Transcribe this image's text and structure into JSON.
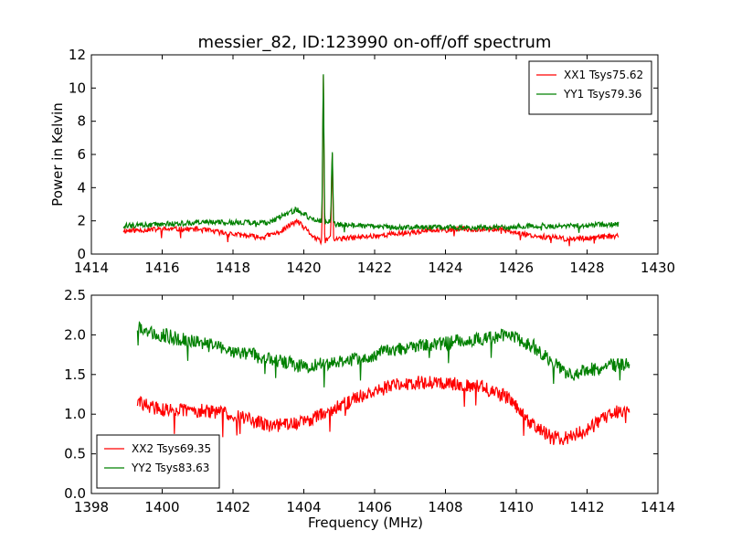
{
  "figure": {
    "title": "messier_82, ID:123990 on-off/off spectrum"
  },
  "chart_data": [
    {
      "type": "line",
      "title": "messier_82, ID:123990 on-off/off spectrum",
      "xlabel": "",
      "ylabel": "Power in Kelvin",
      "xlim": [
        1414,
        1430
      ],
      "ylim": [
        0,
        12
      ],
      "xticks": [
        "1414",
        "1416",
        "1418",
        "1420",
        "1422",
        "1424",
        "1426",
        "1428",
        "1430"
      ],
      "yticks": [
        "0",
        "2",
        "4",
        "6",
        "8",
        "10",
        "12"
      ],
      "grid": false,
      "legend_position": "top-right",
      "series": [
        {
          "name": "XX1 Tsys75.62",
          "color": "#ff0000",
          "x": [
            1414.9,
            1416,
            1417,
            1418,
            1418.8,
            1419.3,
            1419.8,
            1420.3,
            1420.5,
            1420.55,
            1420.6,
            1420.75,
            1420.8,
            1420.9,
            1421.5,
            1422.5,
            1423.5,
            1424.5,
            1425.5,
            1426.5,
            1427.5,
            1428.9
          ],
          "y": [
            1.4,
            1.5,
            1.5,
            1.2,
            1.0,
            1.3,
            2.0,
            1.0,
            0.7,
            11.3,
            0.8,
            1.0,
            6.6,
            0.9,
            1.0,
            1.2,
            1.4,
            1.5,
            1.5,
            1.1,
            0.9,
            1.1
          ]
        },
        {
          "name": "YY1 Tsys79.36",
          "color": "#008000",
          "x": [
            1414.9,
            1416,
            1417,
            1418,
            1419,
            1419.8,
            1420.3,
            1420.5,
            1420.55,
            1420.6,
            1420.75,
            1420.8,
            1420.9,
            1421.5,
            1422.5,
            1423.5,
            1424.5,
            1425.5,
            1426.5,
            1427.5,
            1428.9
          ],
          "y": [
            1.7,
            1.8,
            1.9,
            1.9,
            1.9,
            2.7,
            2.0,
            2.0,
            11.3,
            1.9,
            2.0,
            6.6,
            1.8,
            1.7,
            1.6,
            1.6,
            1.6,
            1.6,
            1.7,
            1.7,
            1.8
          ]
        }
      ]
    },
    {
      "type": "line",
      "title": "",
      "xlabel": "Frequency (MHz)",
      "ylabel": "",
      "xlim": [
        1398,
        1414
      ],
      "ylim": [
        0,
        2.5
      ],
      "xticks": [
        "1398",
        "1400",
        "1402",
        "1404",
        "1406",
        "1408",
        "1410",
        "1412",
        "1414"
      ],
      "yticks": [
        "0.0",
        "0.5",
        "1.0",
        "1.5",
        "2.0",
        "2.5"
      ],
      "grid": false,
      "legend_position": "bottom-left",
      "series": [
        {
          "name": "XX2 Tsys69.35",
          "color": "#ff0000",
          "x": [
            1399.3,
            1400,
            1401,
            1402,
            1403,
            1404,
            1405,
            1406,
            1407,
            1408,
            1409,
            1409.8,
            1410.5,
            1411,
            1411.5,
            1412,
            1412.5,
            1413.2
          ],
          "y": [
            1.15,
            1.05,
            1.05,
            1.0,
            0.85,
            0.9,
            1.1,
            1.3,
            1.4,
            1.4,
            1.35,
            1.2,
            0.85,
            0.7,
            0.7,
            0.8,
            0.95,
            1.1
          ]
        },
        {
          "name": "YY2 Tsys83.63",
          "color": "#008000",
          "x": [
            1399.3,
            1400,
            1401,
            1402,
            1403,
            1404,
            1405,
            1406,
            1407,
            1408,
            1409,
            1409.8,
            1410.5,
            1411,
            1411.5,
            1412,
            1412.5,
            1413.2
          ],
          "y": [
            2.1,
            2.0,
            1.9,
            1.8,
            1.7,
            1.6,
            1.65,
            1.75,
            1.85,
            1.9,
            1.95,
            2.0,
            1.85,
            1.65,
            1.5,
            1.55,
            1.6,
            1.65
          ]
        }
      ]
    }
  ]
}
